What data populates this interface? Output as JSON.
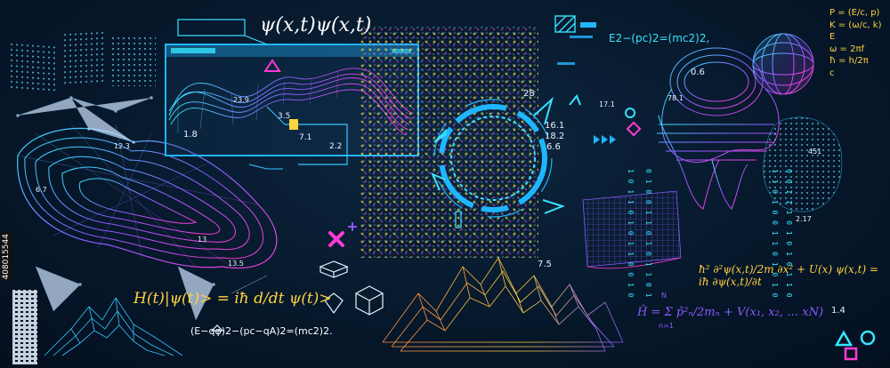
{
  "colors": {
    "background": "#06172a",
    "cyan": "#37e3ff",
    "magenta": "#ff3bd4",
    "yellow": "#ffd23f",
    "orange": "#ff8a3d",
    "purple": "#8a5bff"
  },
  "top_formula": "ψ(x,t)ψ(x,t)",
  "energy_formula": "E2−(pc)2=(mc2)2,",
  "legend_lines": [
    "P = (E/c, p)",
    "K = (ω/c, k)",
    "E",
    "ω = 2πf",
    "ħ = h/2π",
    "c"
  ],
  "formula_schrodinger": "H(t)|ψ(t)> = iħ d/dt ψ(t)>",
  "formula_kg": "(E−qφ)2−(pc−qA)2=(mc2)2.",
  "formula_wave_eq": "ħ² ∂²ψ(x,t)/2m ∂x² + U(x) ψ(x,t) = iħ ∂ψ(x,t)/∂t",
  "formula_hamiltonian": "Ĥ = Σ p̂²ₙ/2mₙ + V(x₁, x₂, … xN)",
  "hamiltonian_sum": "N",
  "hamiltonian_index": "n=1",
  "numbers": {
    "n_1_8": "1.8",
    "n_12_3": "12.3",
    "n_6_7": "6.7",
    "n_13": "13",
    "n_13_5": "13.5",
    "n_23_9": "23.9",
    "n_3_5": "3.5",
    "n_7_1": "7.1",
    "n_2_2": "2.2",
    "n_28": "28",
    "n_16_1": "16.1",
    "n_18_2": "18.2",
    "n_6_6": "6.6",
    "n_7_5": "7.5",
    "n_17_1": "17.1",
    "n_0_6": "0.6",
    "n_78_1": "78.1",
    "n_451": "451",
    "n_2_17": "2.17",
    "n_1_4": "1.4"
  },
  "watermark_id": "408015544",
  "binary_columns": [
    "1 0 1 1 0 1 0 1 1 0 0 1 0",
    "0 1 0 0 1 1 0 1 0 1 1 0 1",
    "1 1 0 1 0 0 1 1 0 1 0 1 0",
    "0 0 1 1 1 0 1 0 1 0 1 1 0"
  ]
}
